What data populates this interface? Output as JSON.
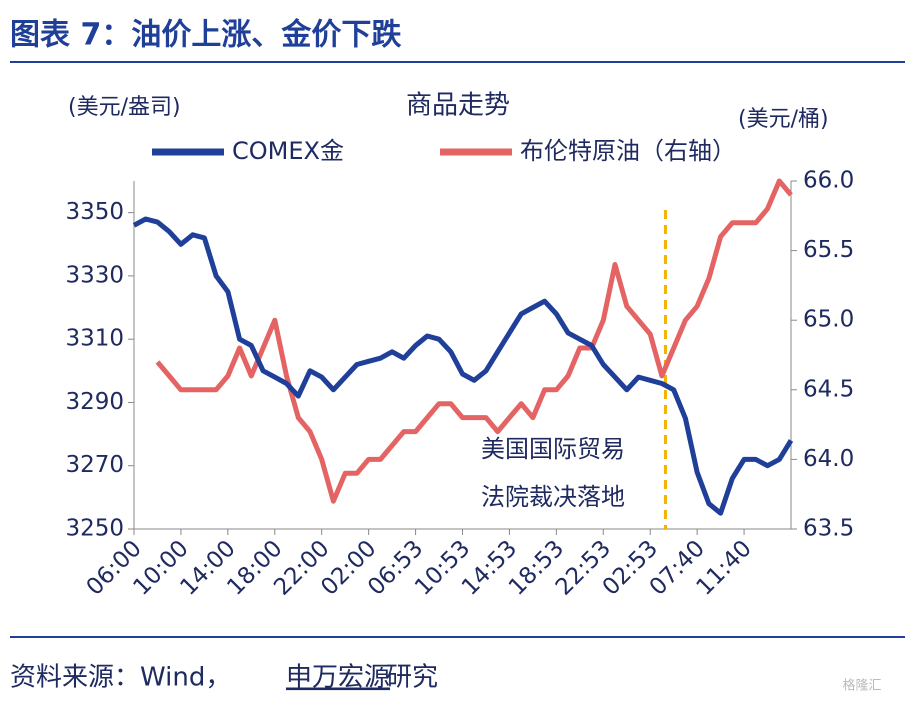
{
  "header": {
    "title": "图表 7：油价上涨、金价下跌"
  },
  "chart_data": {
    "type": "line",
    "title": "商品走势",
    "y_label": "(美元/盎司)",
    "y2_label": "(美元/桶)",
    "categories": [
      "06:00",
      null,
      null,
      null,
      "10:00",
      null,
      null,
      null,
      "14:00",
      null,
      null,
      null,
      "18:00",
      null,
      null,
      null,
      "22:00",
      null,
      null,
      null,
      "02:00",
      null,
      null,
      null,
      "06:53",
      null,
      null,
      null,
      "10:53",
      null,
      null,
      null,
      "14:53",
      null,
      null,
      null,
      "18:53",
      null,
      null,
      null,
      "22:53",
      null,
      null,
      null,
      "02:53",
      null,
      null,
      null,
      "07:40",
      null,
      null,
      null,
      "11:40",
      null,
      null,
      null,
      null
    ],
    "series": [
      {
        "name": "COMEX金",
        "color": "#1f3f99",
        "values": [
          3346,
          3348,
          3347,
          3344,
          3340,
          3343,
          3342,
          3330,
          3325,
          3310,
          3308,
          3300,
          3298,
          3296,
          3292,
          3300,
          3298,
          3294,
          3298,
          3302,
          3303,
          3304,
          3306,
          3304,
          3308,
          3311,
          3310,
          3306,
          3299,
          3297,
          3300,
          3306,
          3312,
          3318,
          3320,
          3322,
          3318,
          3312,
          3310,
          3308,
          3302,
          3298,
          3294,
          3298,
          3297,
          3296,
          3294,
          3285,
          3268,
          3258,
          3255,
          3266,
          3272,
          3272,
          3270,
          3272,
          3278
        ]
      },
      {
        "name": "布伦特原油（右轴）",
        "color": "#e46464",
        "axis": "y2",
        "values": [
          null,
          null,
          64.7,
          64.6,
          64.5,
          64.5,
          64.5,
          64.5,
          64.6,
          64.8,
          64.6,
          64.8,
          65.0,
          64.6,
          64.3,
          64.2,
          64.0,
          63.7,
          63.9,
          63.9,
          64.0,
          64.0,
          64.1,
          64.2,
          64.2,
          64.3,
          64.4,
          64.4,
          64.3,
          64.3,
          64.3,
          64.2,
          64.3,
          64.4,
          64.3,
          64.5,
          64.5,
          64.6,
          64.8,
          64.8,
          65.0,
          65.4,
          65.1,
          65.0,
          64.9,
          64.6,
          64.8,
          65.0,
          65.1,
          65.3,
          65.6,
          65.7,
          65.7,
          65.7,
          65.8,
          66.0,
          65.9
        ]
      }
    ],
    "ylim": [
      3250,
      3360
    ],
    "yticks": [
      3250,
      3270,
      3290,
      3310,
      3330,
      3350
    ],
    "y2lim": [
      63.5,
      66.0
    ],
    "y2ticks": [
      63.5,
      {
        "value": 64,
        "label": "64.0"
      },
      64.5,
      {
        "value": 65,
        "label": "65.0"
      },
      65.5,
      {
        "value": 66,
        "label": "66.0"
      }
    ],
    "annotation": [
      "美国国际贸易",
      "法院裁决落地"
    ]
  },
  "footer": {
    "source": "资料来源：Wind，",
    "org": "申万宏源",
    "suffix": "研究",
    "watermark": "格隆汇"
  }
}
